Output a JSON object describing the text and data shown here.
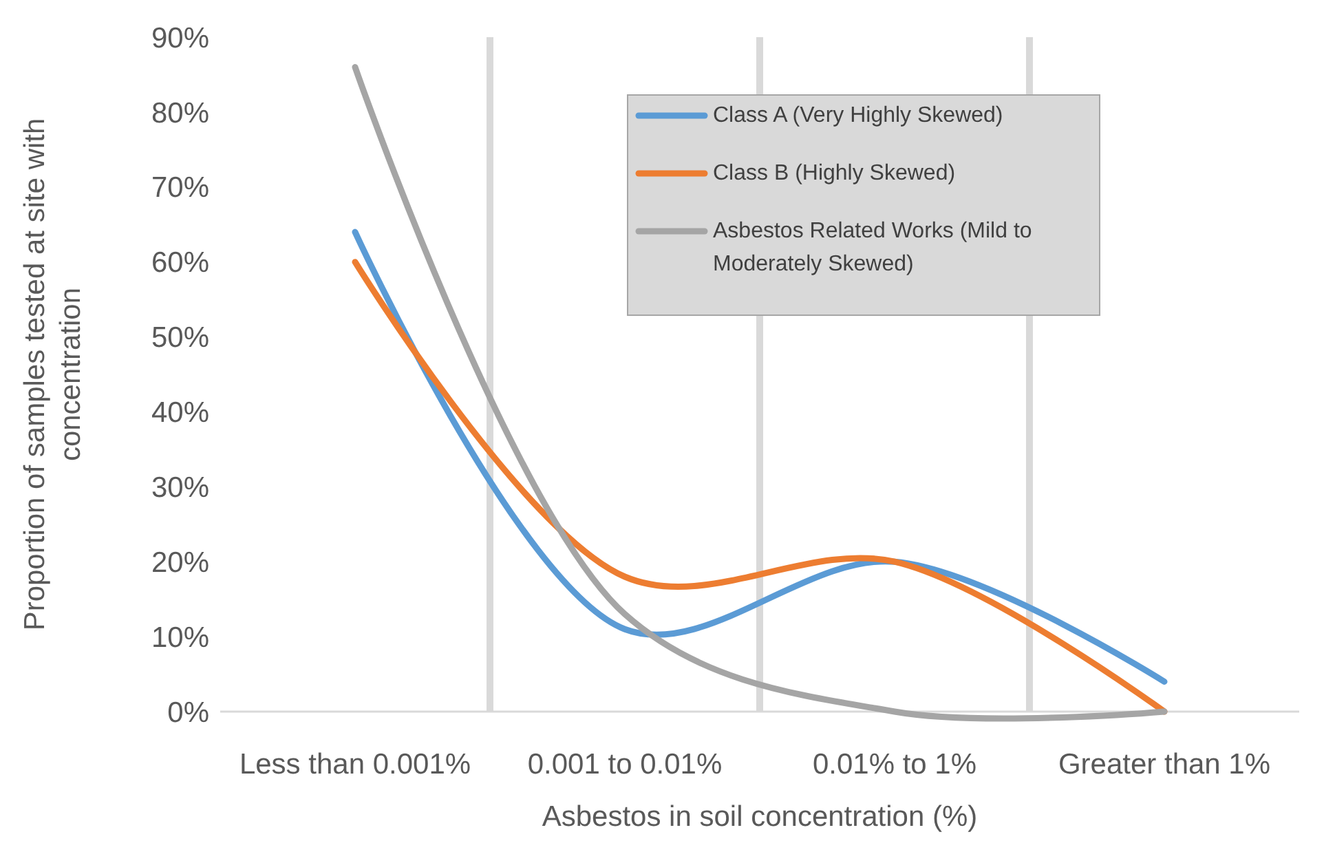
{
  "chart_data": {
    "type": "line",
    "xlabel": "Asbestos in soil concentration (%)",
    "ylabel": "Proportion of samples tested at site with concentration",
    "categories": [
      "Less than 0.001%",
      "0.001 to 0.01%",
      "0.01% to 1%",
      "Greater than 1%"
    ],
    "series": [
      {
        "name": "Class A (Very Highly Skewed)",
        "color": "#5b9bd5",
        "values": [
          64,
          11,
          20,
          4
        ]
      },
      {
        "name": "Class B (Highly Skewed)",
        "color": "#ed7d31",
        "values": [
          60,
          18,
          20,
          0
        ]
      },
      {
        "name": "Asbestos Related Works (Mild to Moderately Skewed)",
        "color": "#a5a5a5",
        "values": [
          86,
          13,
          0,
          0
        ]
      }
    ],
    "ylim": [
      0,
      90
    ],
    "yticks": [
      {
        "value": 0,
        "label": "0%"
      },
      {
        "value": 10,
        "label": "10%"
      },
      {
        "value": 20,
        "label": "20%"
      },
      {
        "value": 30,
        "label": "30%"
      },
      {
        "value": 40,
        "label": "40%"
      },
      {
        "value": 50,
        "label": "50%"
      },
      {
        "value": 60,
        "label": "60%"
      },
      {
        "value": 70,
        "label": "70%"
      },
      {
        "value": 80,
        "label": "80%"
      },
      {
        "value": 90,
        "label": "90%"
      }
    ],
    "grid": "x",
    "legend": "top right",
    "marker": "none",
    "line_style": "solid"
  }
}
